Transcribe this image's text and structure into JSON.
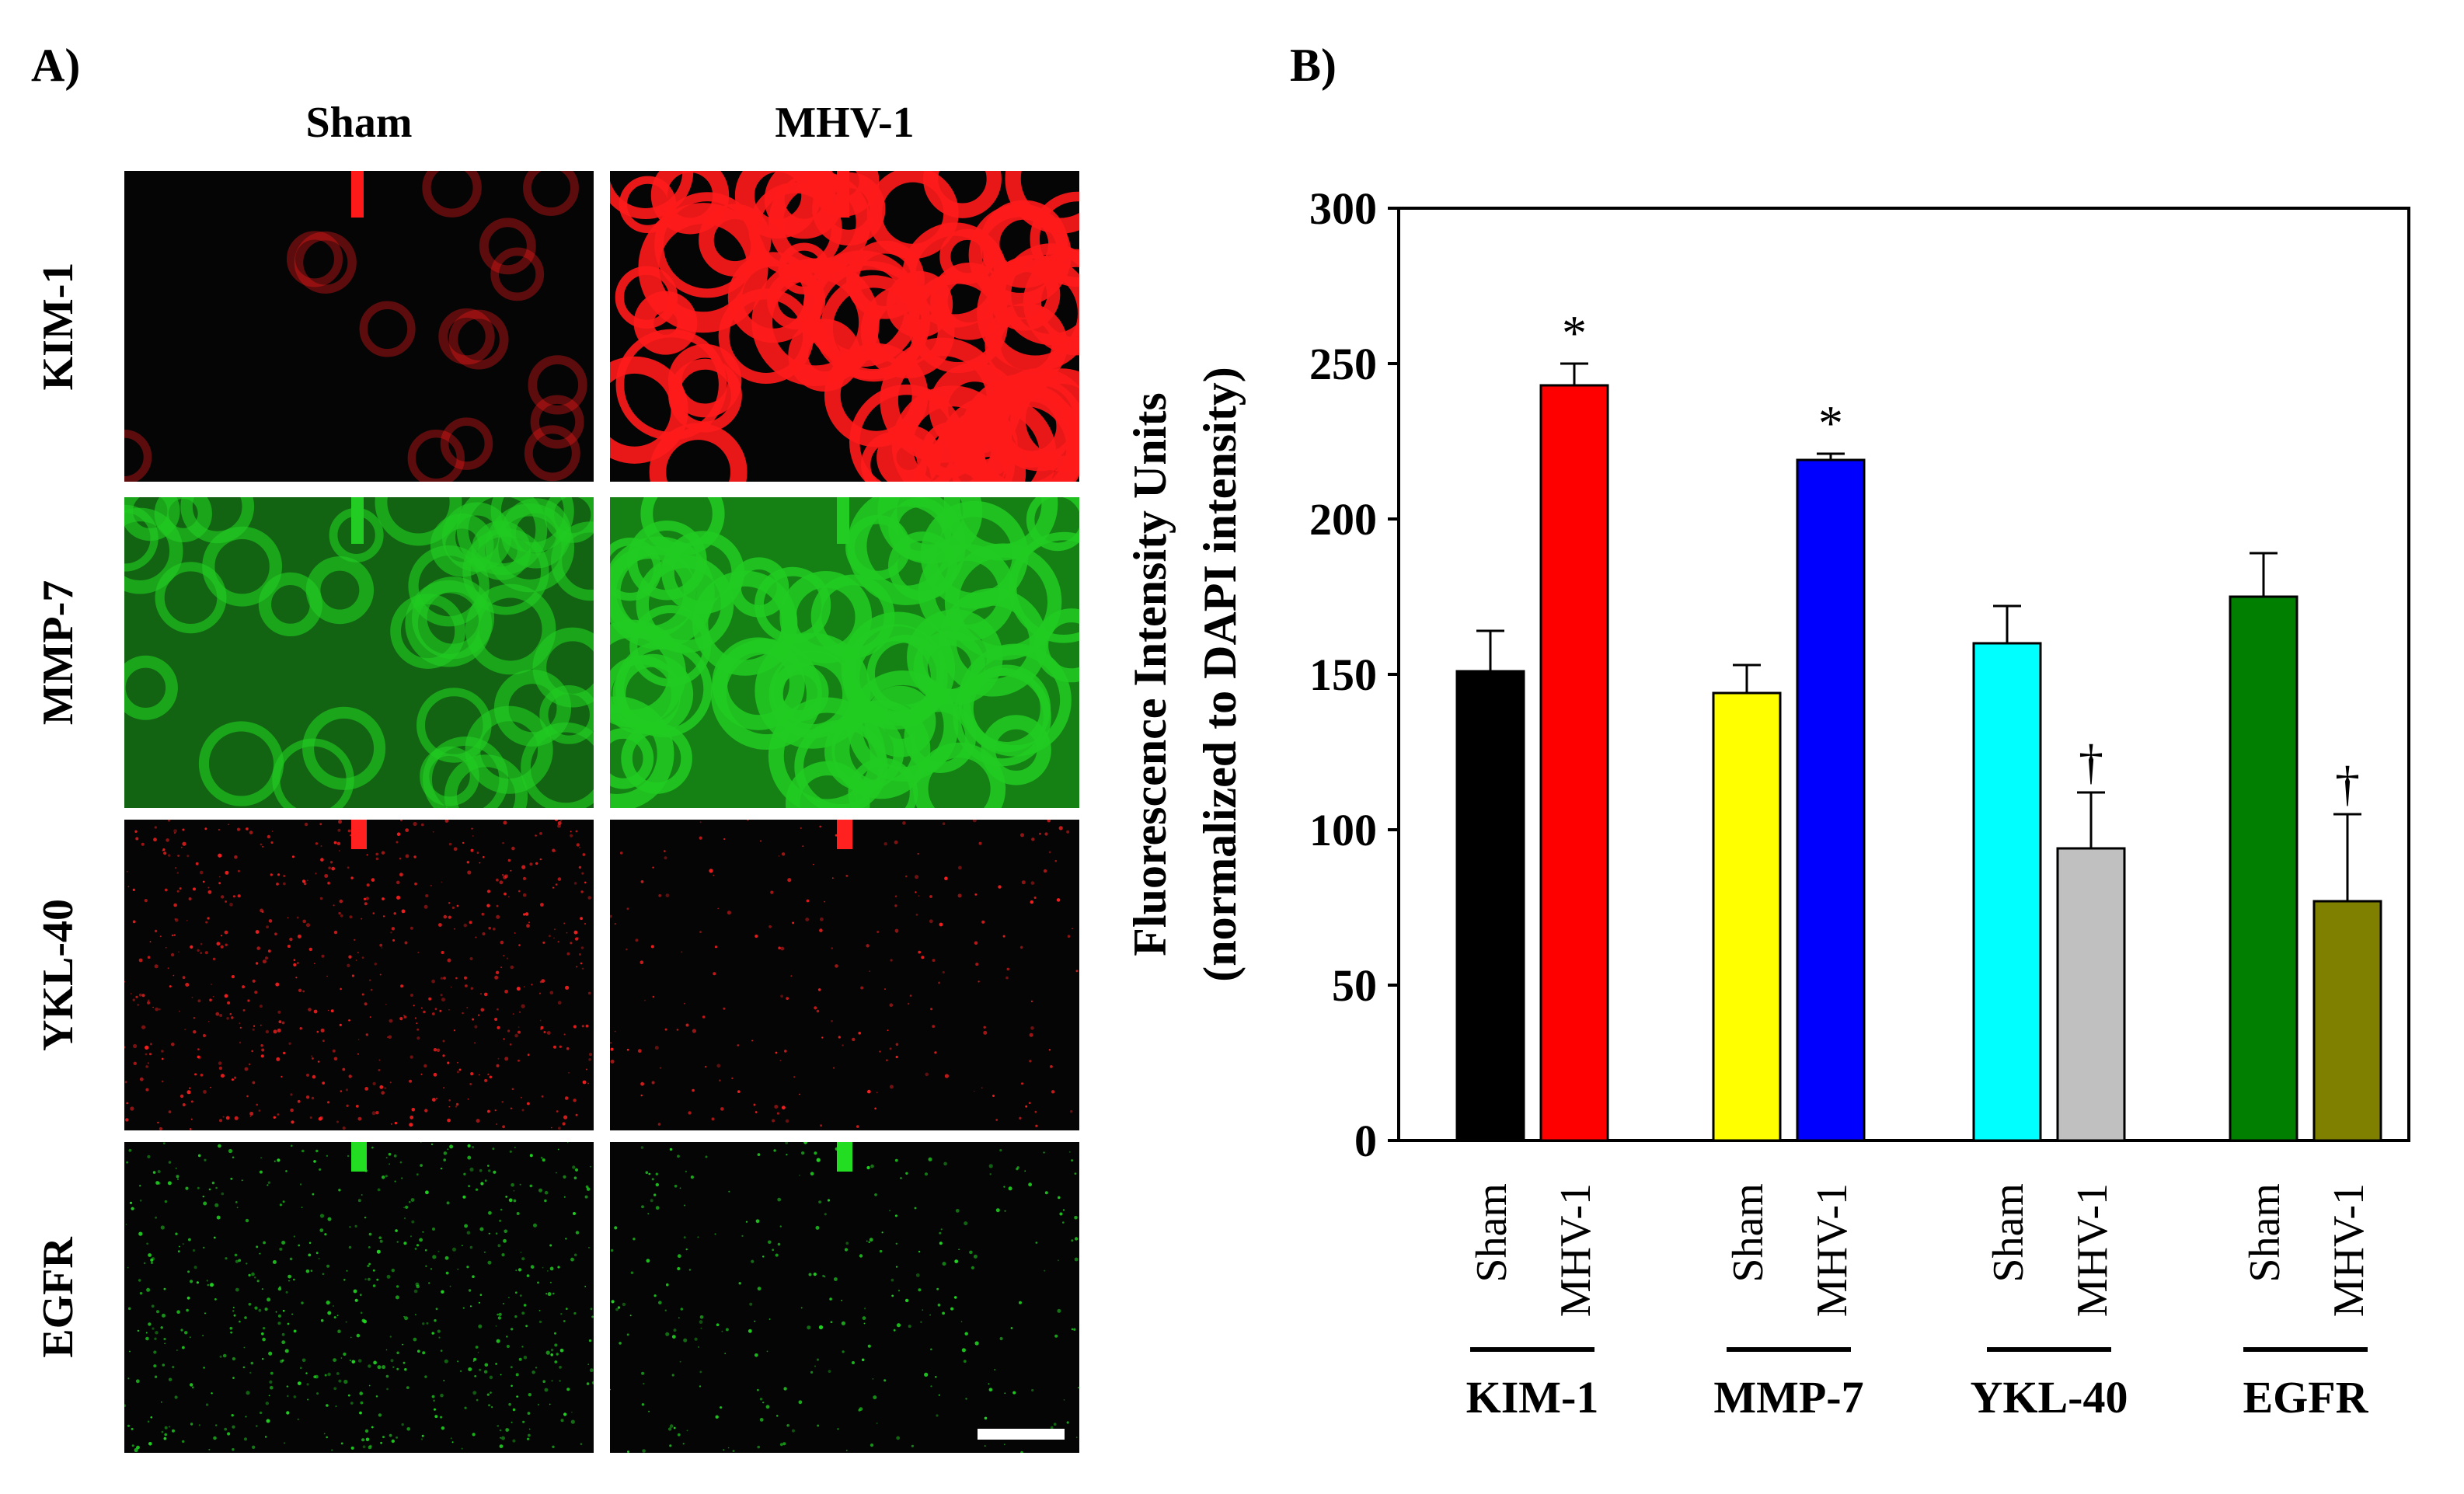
{
  "panel_a": {
    "label": "A)",
    "columns": [
      "Sham",
      "MHV-1"
    ],
    "rows": [
      {
        "label": "KIM-1",
        "color": "#ff1a1a",
        "sham_level": 0.15,
        "mhv_level": 0.95
      },
      {
        "label": "MMP-7",
        "color": "#22cc22",
        "sham_level": 0.55,
        "mhv_level": 0.85
      },
      {
        "label": "YKL-40",
        "color": "#ff2020",
        "sham_level": 0.45,
        "mhv_level": 0.15
      },
      {
        "label": "EGFR",
        "color": "#22dd22",
        "sham_level": 0.45,
        "mhv_level": 0.2
      }
    ]
  },
  "panel_b": {
    "label": "B)"
  },
  "chart_data": {
    "type": "bar",
    "ylabel_line1": "Fluorescence Intensity Units",
    "ylabel_line2": "(normalized to DAPI intensity)",
    "ylim": [
      0,
      300
    ],
    "yticks": [
      0,
      50,
      100,
      150,
      200,
      250,
      300
    ],
    "groups": [
      {
        "name": "KIM-1",
        "bars": [
          {
            "label": "Sham",
            "value": 151,
            "error": 13,
            "color": "#000000",
            "mark": ""
          },
          {
            "label": "MHV-1",
            "value": 243,
            "error": 7,
            "color": "#ff0000",
            "mark": "*"
          }
        ]
      },
      {
        "name": "MMP-7",
        "bars": [
          {
            "label": "Sham",
            "value": 144,
            "error": 9,
            "color": "#ffff00",
            "mark": ""
          },
          {
            "label": "MHV-1",
            "value": 219,
            "error": 2,
            "color": "#0000ff",
            "mark": "*"
          }
        ]
      },
      {
        "name": "YKL-40",
        "bars": [
          {
            "label": "Sham",
            "value": 160,
            "error": 12,
            "color": "#00ffff",
            "mark": ""
          },
          {
            "label": "MHV-1",
            "value": 94,
            "error": 18,
            "color": "#c0c0c0",
            "mark": "†"
          }
        ]
      },
      {
        "name": "EGFR",
        "bars": [
          {
            "label": "Sham",
            "value": 175,
            "error": 14,
            "color": "#007f00",
            "mark": ""
          },
          {
            "label": "MHV-1",
            "value": 77,
            "error": 28,
            "color": "#7f7f00",
            "mark": "†"
          }
        ]
      }
    ]
  }
}
